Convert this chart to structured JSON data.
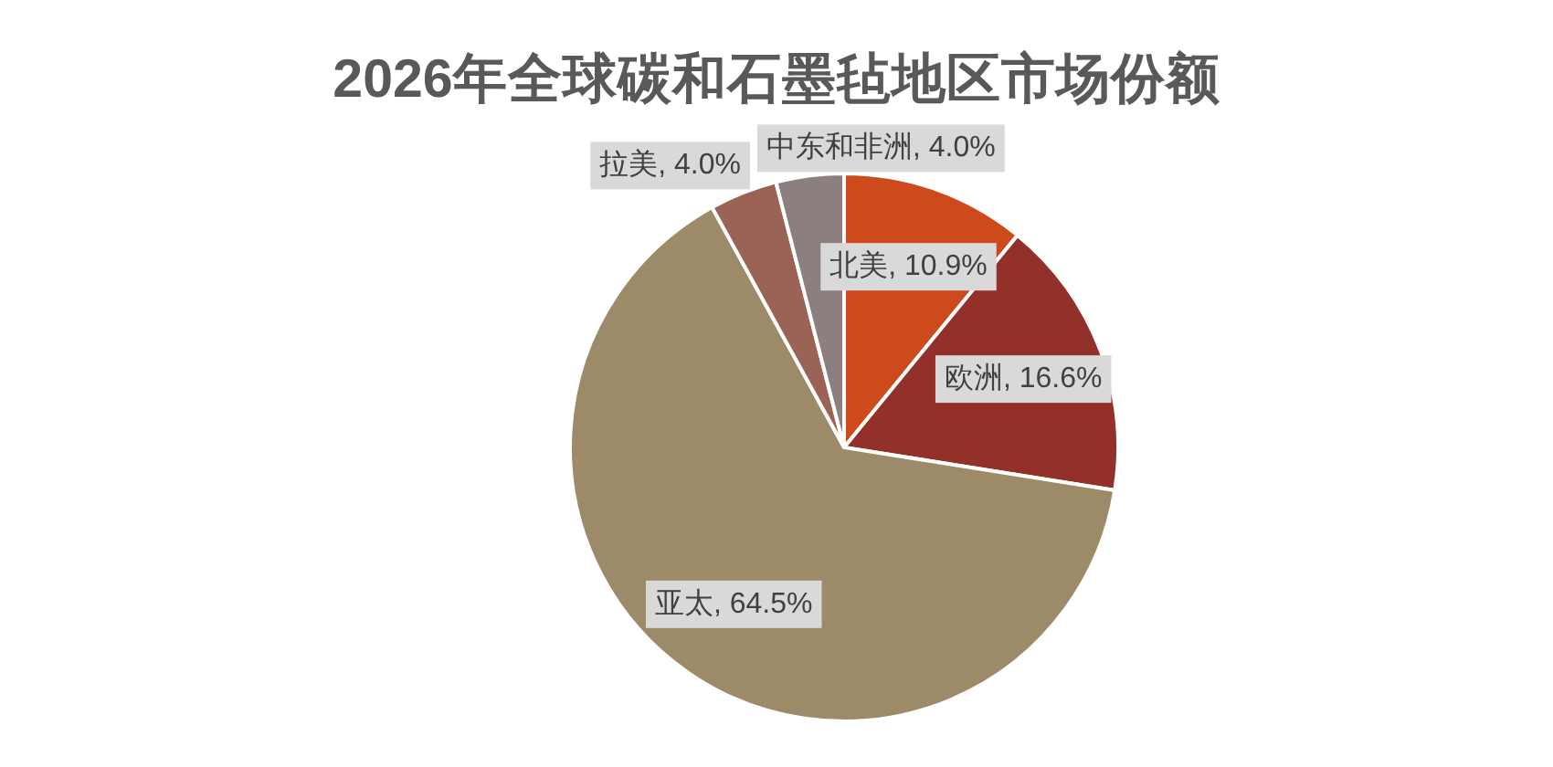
{
  "chart_data": {
    "type": "pie",
    "title": "2026年全球碳和石墨毡地区市场份额",
    "categories": [
      "北美",
      "欧洲",
      "亚太",
      "拉美",
      "中东和非洲"
    ],
    "values": [
      10.9,
      16.6,
      64.5,
      4.0,
      4.0
    ],
    "value_labels": [
      "10.9%",
      "16.6%",
      "64.5%",
      "4.0%",
      "4.0%"
    ],
    "colors": [
      "#cd4a1c",
      "#93302a",
      "#9c8a68",
      "#9a6355",
      "#8c7f80"
    ]
  }
}
